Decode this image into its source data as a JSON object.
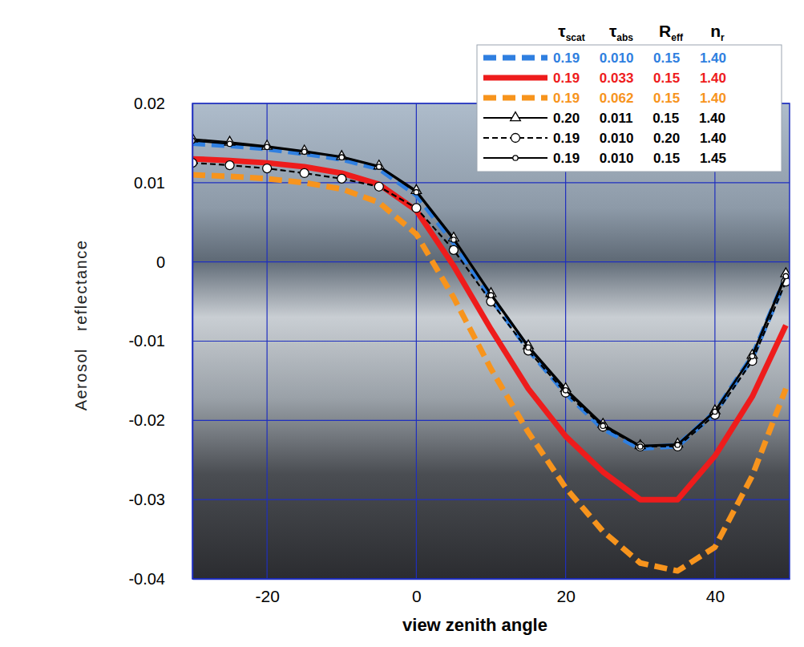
{
  "chart_data": {
    "type": "line",
    "x_label": "view zenith angle",
    "y_label": "Aerosol reflectance",
    "x": [
      -30,
      -25,
      -20,
      -15,
      -10,
      -5,
      0,
      5,
      10,
      15,
      20,
      25,
      30,
      35,
      40,
      45,
      49.5
    ],
    "xlim": [
      -30,
      50
    ],
    "ylim": [
      -0.04,
      0.02
    ],
    "xticks": [
      -20,
      0,
      20,
      40
    ],
    "yticks": [
      -0.04,
      -0.03,
      -0.02,
      -0.01,
      0,
      0.01,
      0.02
    ],
    "grid": true,
    "legend": "upper right",
    "legend_header": [
      {
        "text": "τ",
        "sub": "scat"
      },
      {
        "text": "τ",
        "sub": "abs"
      },
      {
        "text": "R",
        "sub": "eff"
      },
      {
        "text": "n",
        "sub": "r"
      }
    ],
    "series": [
      {
        "name": "0.19 0.010 0.15 1.40",
        "color": "#2f7fe0",
        "line_style": "dashed",
        "values": [
          0.015,
          0.0147,
          0.0143,
          0.0137,
          0.013,
          0.0118,
          0.0085,
          0.0025,
          -0.0045,
          -0.011,
          -0.0165,
          -0.021,
          -0.0235,
          -0.0232,
          -0.019,
          -0.012,
          -0.002
        ]
      },
      {
        "name": "0.19 0.033 0.15 1.40",
        "color": "#ee1c1c",
        "line_style": "solid",
        "values": [
          0.013,
          0.0128,
          0.0125,
          0.012,
          0.0112,
          0.0098,
          0.0065,
          -0.0005,
          -0.0085,
          -0.016,
          -0.022,
          -0.0265,
          -0.03,
          -0.03,
          -0.0245,
          -0.017,
          -0.008
        ]
      },
      {
        "name": "0.19 0.062 0.15 1.40",
        "color": "#f7941d",
        "line_style": "dashed",
        "values": [
          0.011,
          0.0108,
          0.0105,
          0.01,
          0.0092,
          0.0075,
          0.0035,
          -0.0045,
          -0.0135,
          -0.0215,
          -0.0285,
          -0.034,
          -0.038,
          -0.039,
          -0.036,
          -0.027,
          -0.016
        ]
      },
      {
        "name": "0.20 0.011 0.15 1.40",
        "color": "#000000",
        "line_style": "solid",
        "marker": "triangle",
        "values": [
          0.0155,
          0.0151,
          0.0146,
          0.014,
          0.0133,
          0.0121,
          0.009,
          0.003,
          -0.004,
          -0.0106,
          -0.016,
          -0.0205,
          -0.0232,
          -0.023,
          -0.0188,
          -0.0118,
          -0.0015
        ]
      },
      {
        "name": "0.19 0.010 0.20 1.40",
        "color": "#000000",
        "line_style": "dashed",
        "marker": "circle",
        "values": [
          0.0125,
          0.0122,
          0.0118,
          0.0112,
          0.0105,
          0.0095,
          0.0068,
          0.0015,
          -0.005,
          -0.0112,
          -0.0165,
          -0.0208,
          -0.0233,
          -0.0233,
          -0.0193,
          -0.0125,
          -0.0025
        ]
      },
      {
        "name": "0.19 0.010 0.15 1.45",
        "color": "#000000",
        "line_style": "solid",
        "marker": "circle",
        "values": [
          0.0153,
          0.0149,
          0.0145,
          0.0139,
          0.0132,
          0.012,
          0.0088,
          0.0028,
          -0.0042,
          -0.0108,
          -0.0162,
          -0.0207,
          -0.0233,
          -0.0231,
          -0.0189,
          -0.0119,
          -0.0018
        ]
      }
    ]
  }
}
